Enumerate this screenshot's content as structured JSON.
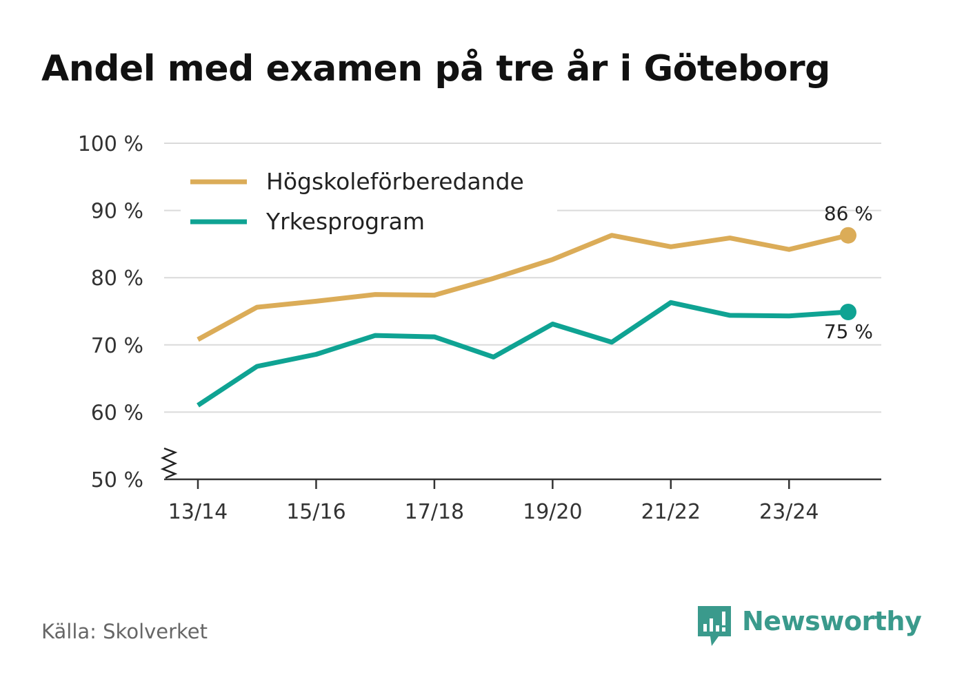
{
  "title": "Andel med examen på tre år i Göteborg",
  "source": "Källa: Skolverket",
  "brand": {
    "name": "Newsworthy",
    "icon": "newsworthy-logo-icon",
    "color": "#3a9a8c"
  },
  "chart_data": {
    "type": "line",
    "title": "Andel med examen på tre år i Göteborg",
    "xlabel": "",
    "ylabel": "",
    "x": [
      "13/14",
      "14/15",
      "15/16",
      "16/17",
      "17/18",
      "18/19",
      "19/20",
      "20/21",
      "21/22",
      "22/23",
      "23/24",
      "24/25"
    ],
    "x_tick_labels": [
      "13/14",
      "15/16",
      "17/18",
      "19/20",
      "21/22",
      "23/24"
    ],
    "y_tick_labels": [
      "100 %",
      "90 %",
      "80 %",
      "70 %",
      "60 %",
      "50 %"
    ],
    "y_ticks": [
      100,
      90,
      80,
      70,
      60,
      50
    ],
    "ylim": [
      50,
      100
    ],
    "y_axis_break": true,
    "grid": true,
    "legend_position": "top-left",
    "series": [
      {
        "name": "Högskoleförberedande",
        "color": "#dbac58",
        "values": [
          70.8,
          75.6,
          76.5,
          77.5,
          77.4,
          79.9,
          82.7,
          86.3,
          84.6,
          85.9,
          84.2,
          86.3
        ],
        "end_label": "86 %"
      },
      {
        "name": "Yrkesprogram",
        "color": "#0fa393",
        "values": [
          61.0,
          66.8,
          68.6,
          71.4,
          71.2,
          68.2,
          73.1,
          70.4,
          76.3,
          74.4,
          74.3,
          74.9
        ],
        "end_label": "75 %"
      }
    ]
  }
}
